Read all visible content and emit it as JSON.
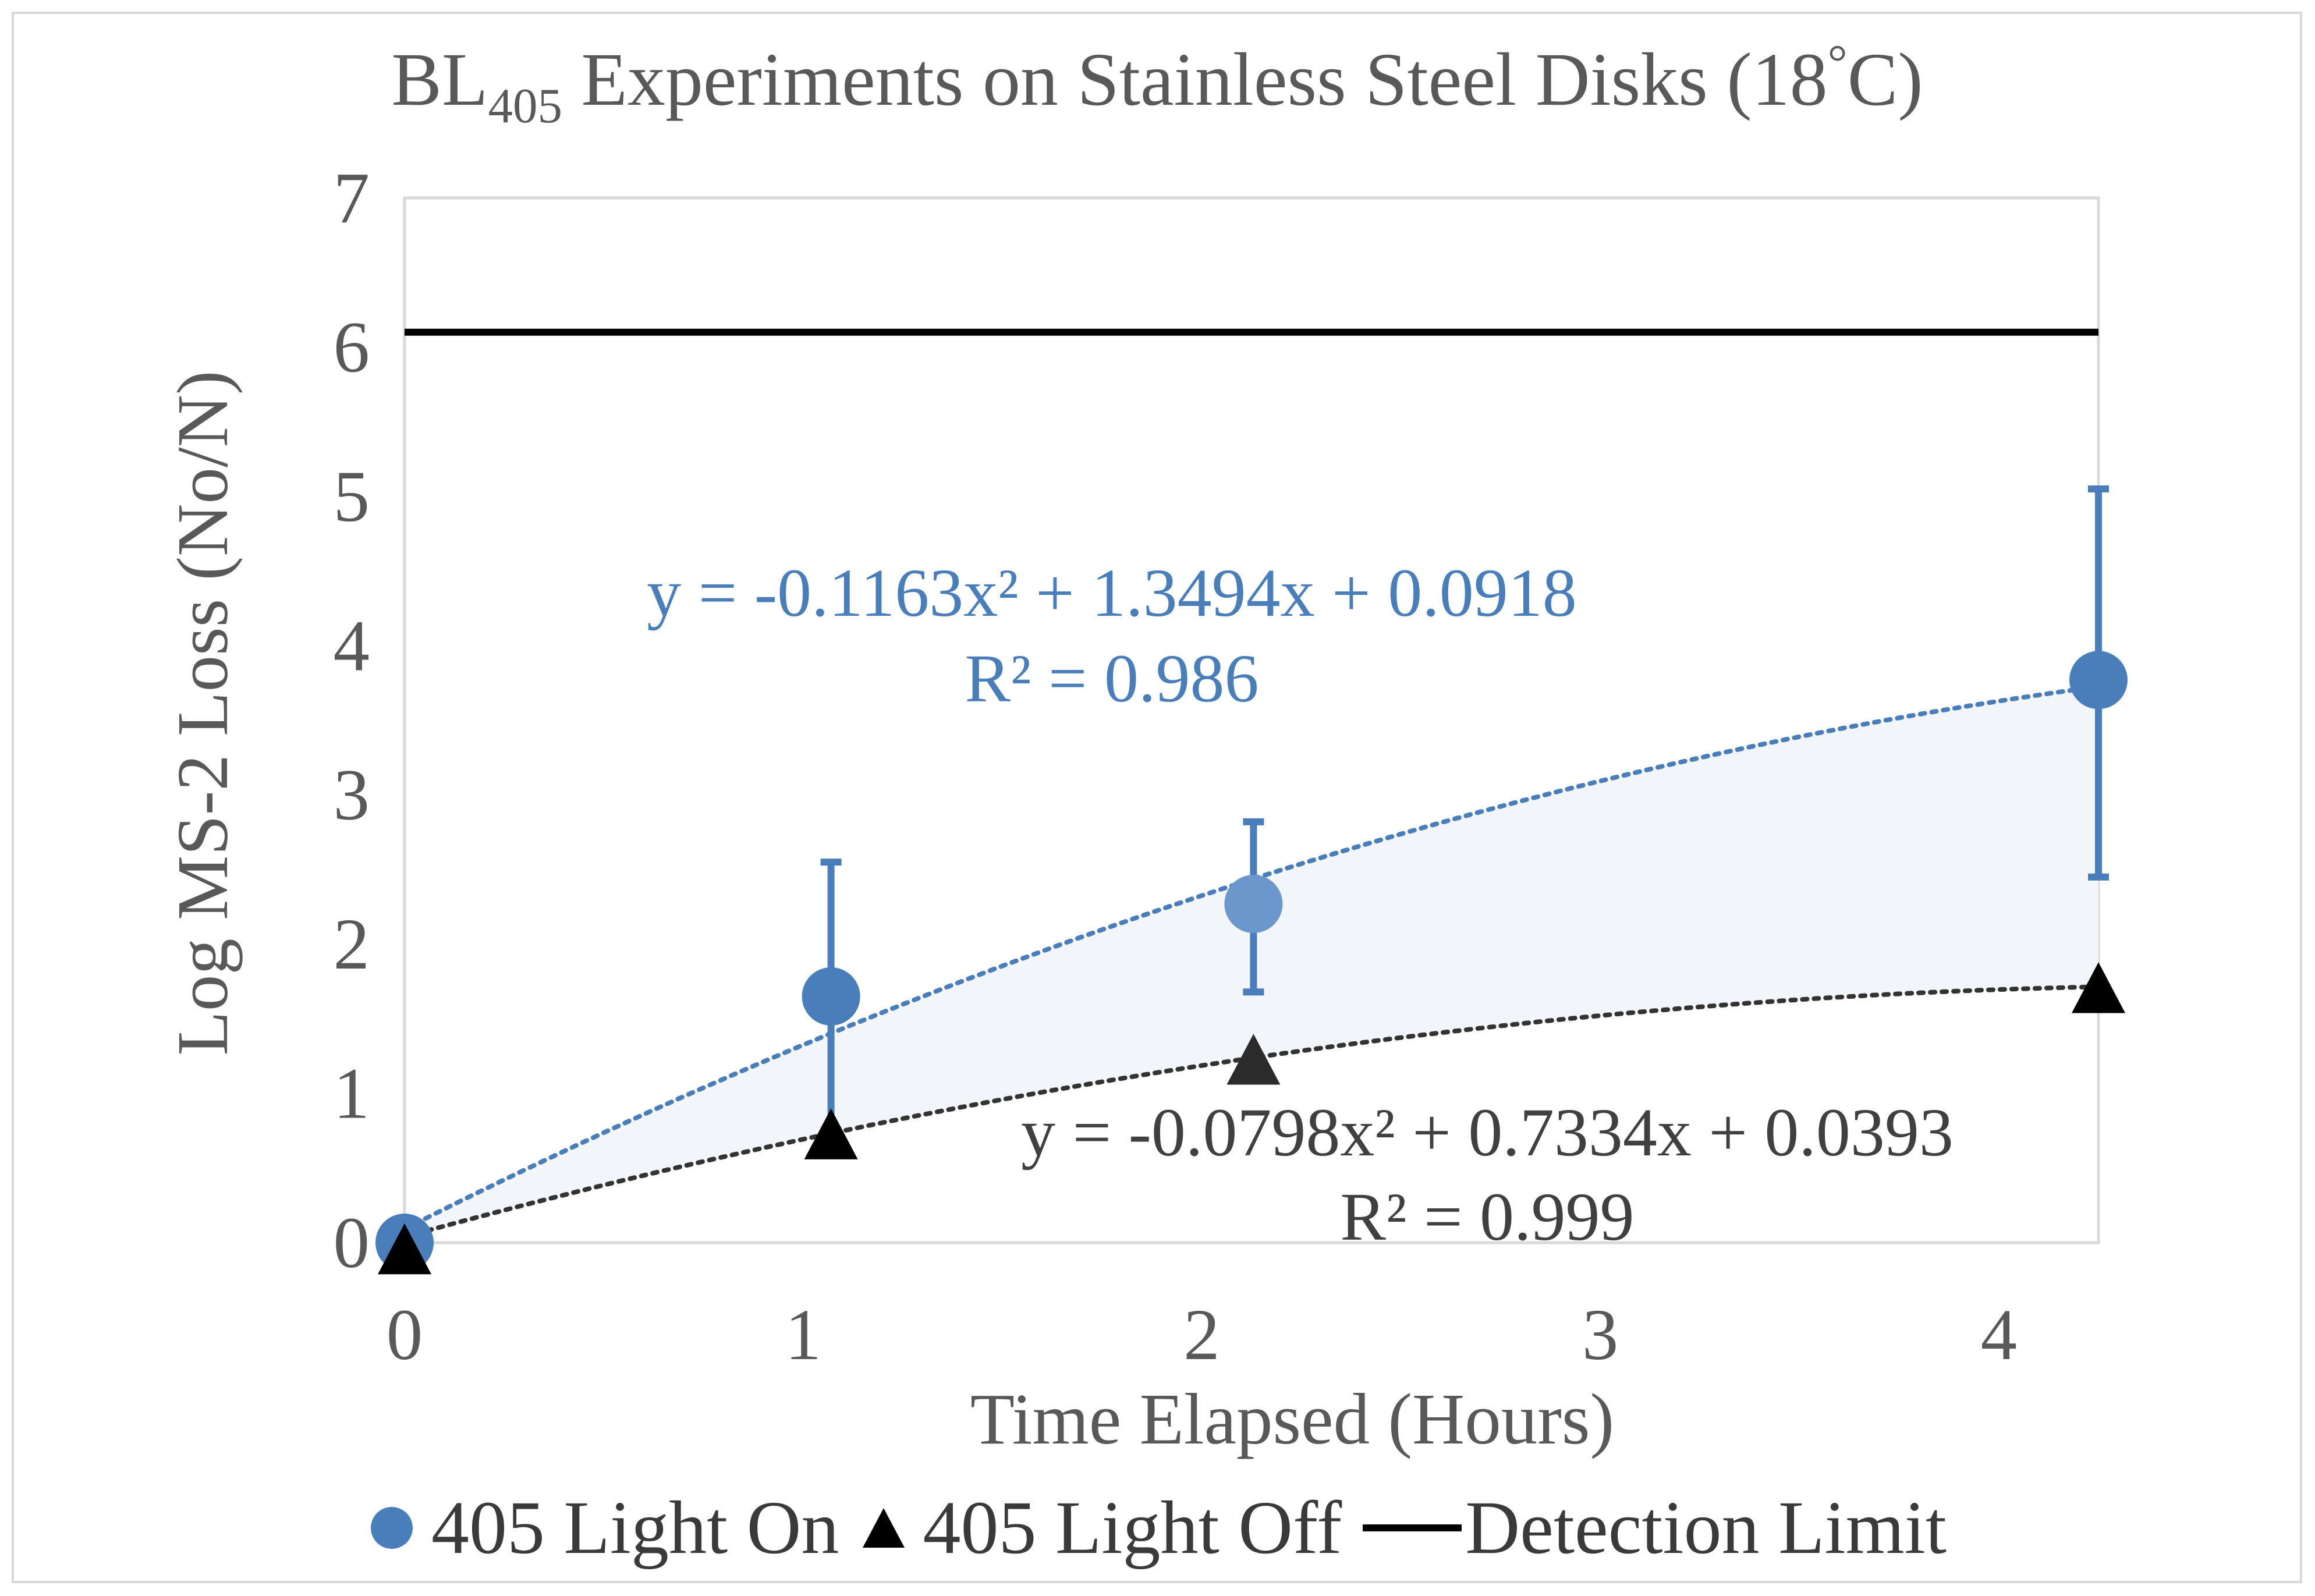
{
  "chart_data": {
    "type": "scatter",
    "title": "BL",
    "title_subscript": "405",
    "title_rest": " Experiments on Stainless Steel Disks (18",
    "title_degree": "°",
    "title_end": "C)",
    "xlabel": "Time Elapsed (Hours)",
    "ylabel": "Log MS-2 Loss (No/N)",
    "xlim": [
      0,
      4.25
    ],
    "ylim": [
      0,
      7
    ],
    "xticks": [
      0,
      1,
      2,
      3,
      4
    ],
    "yticks": [
      0,
      1,
      2,
      3,
      4,
      5,
      6,
      7
    ],
    "legend_position": "bottom",
    "series": [
      {
        "name": "405 Light On",
        "marker": "circle",
        "color": "#4a7ebb",
        "x": [
          0,
          1.07,
          2.13,
          4.25
        ],
        "y": [
          0,
          1.65,
          2.27,
          3.77
        ],
        "error_low": [
          0,
          0.75,
          1.68,
          2.45
        ],
        "error_high": [
          0,
          2.55,
          2.82,
          5.05
        ],
        "trendline": {
          "type": "polynomial",
          "a": -0.1163,
          "b": 1.3494,
          "c": 0.0918,
          "range": [
            0,
            4.25
          ]
        },
        "equation": "y = -0.1163x² + 1.3494x + 0.0918",
        "r2": "R² = 0.986"
      },
      {
        "name": "405 Light Off",
        "marker": "triangle",
        "color": "#000000",
        "x": [
          0,
          1.07,
          2.13,
          4.25
        ],
        "y": [
          -0.05,
          0.72,
          1.22,
          1.7
        ],
        "trendline": {
          "type": "polynomial",
          "a": -0.0798,
          "b": 0.7334,
          "c": 0.0393,
          "range": [
            0,
            4.25
          ]
        },
        "equation": "y = -0.0798x² + 0.7334x + 0.0393",
        "r2": "R² = 0.999"
      },
      {
        "name": "Detection Limit",
        "marker": "line",
        "color": "#000000",
        "x": [
          0,
          4.25
        ],
        "y": [
          6.1,
          6.1
        ]
      }
    ],
    "shaded_band": {
      "between": [
        "405 Light On",
        "405 Light Off"
      ],
      "color": "#f2f6fa"
    },
    "grid": false
  }
}
